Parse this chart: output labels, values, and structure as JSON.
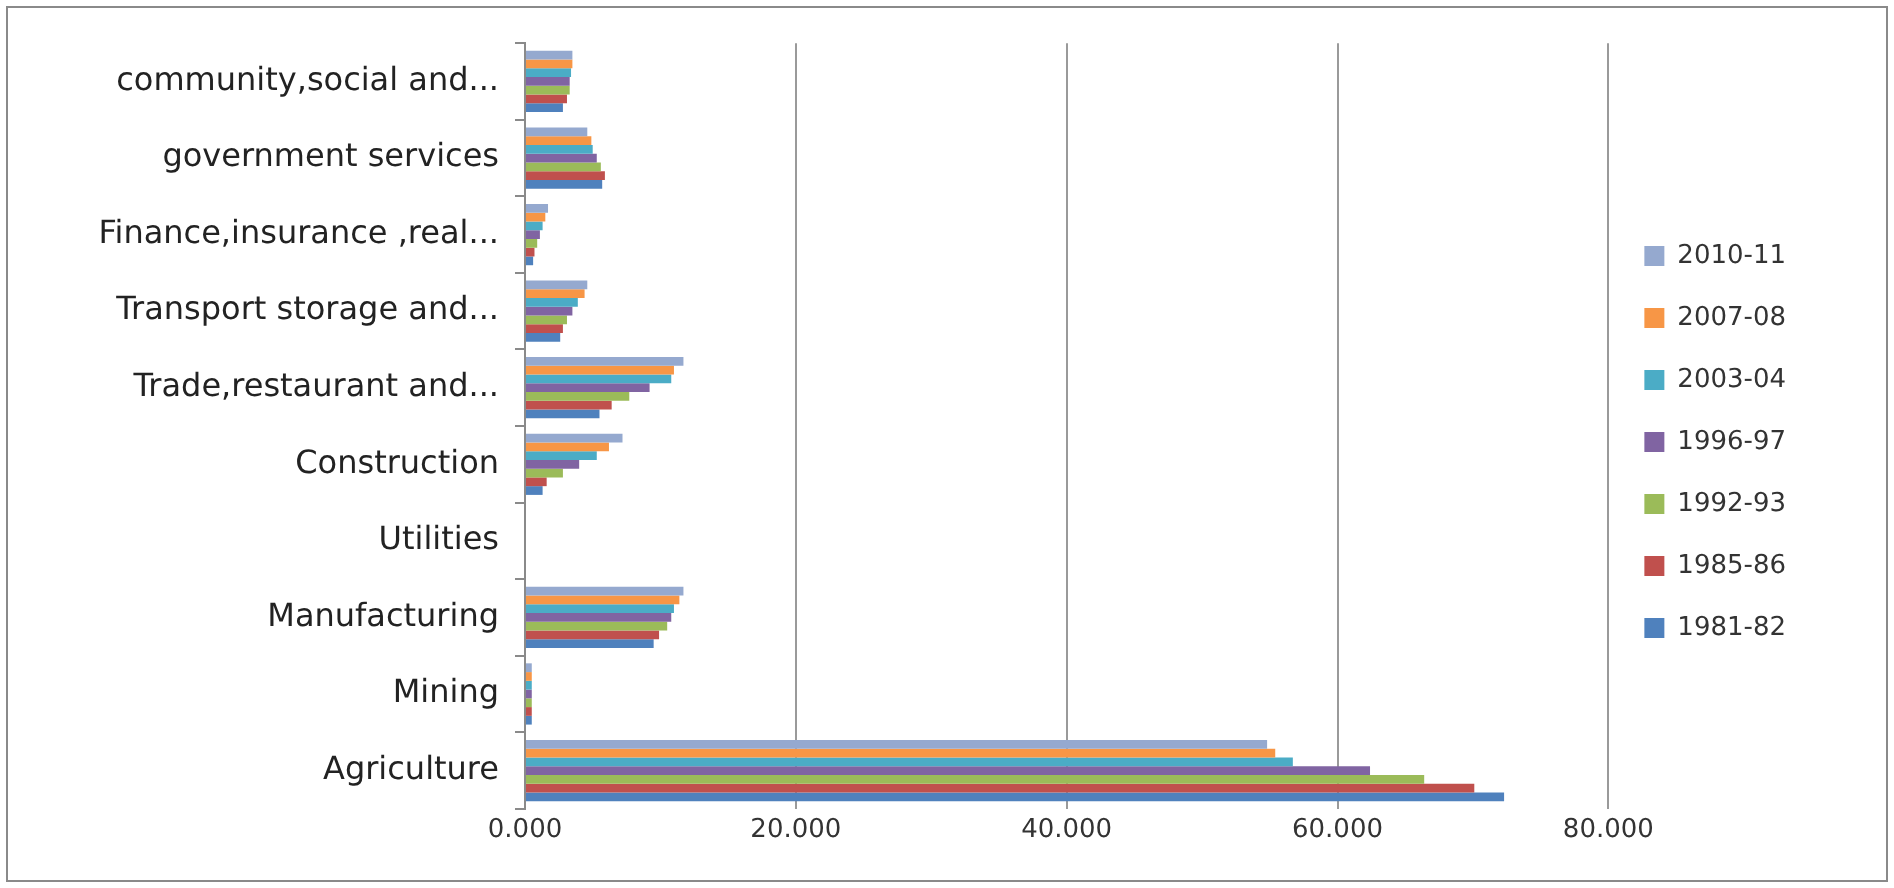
{
  "chart_data": {
    "type": "bar",
    "orientation": "horizontal",
    "categories": [
      "community,social and...",
      "government services",
      "Finance,insurance ,real...",
      "Transport storage and...",
      "Trade,restaurant and...",
      "Construction",
      "Utilities",
      "Manufacturing",
      "Mining",
      "Agriculture"
    ],
    "series": [
      {
        "name": "2010-11",
        "color": "#95a9cf",
        "values": [
          3.5,
          4.6,
          1.7,
          4.6,
          11.7,
          7.2,
          null,
          11.7,
          0.5,
          54.8
        ]
      },
      {
        "name": "2007-08",
        "color": "#f79646",
        "values": [
          3.5,
          4.9,
          1.5,
          4.4,
          11.0,
          6.2,
          null,
          11.4,
          0.5,
          55.4
        ]
      },
      {
        "name": "2003-04",
        "color": "#4bacc6",
        "values": [
          3.4,
          5.0,
          1.3,
          3.9,
          10.8,
          5.3,
          null,
          11.0,
          0.5,
          56.7
        ]
      },
      {
        "name": "1996-97",
        "color": "#8064a2",
        "values": [
          3.3,
          5.3,
          1.1,
          3.5,
          9.2,
          4.0,
          null,
          10.8,
          0.5,
          62.4
        ]
      },
      {
        "name": "1992-93",
        "color": "#9bbb59",
        "values": [
          3.3,
          5.6,
          0.9,
          3.1,
          7.7,
          2.8,
          null,
          10.5,
          0.5,
          66.4
        ]
      },
      {
        "name": "1985-86",
        "color": "#c0504d",
        "values": [
          3.1,
          5.9,
          0.7,
          2.8,
          6.4,
          1.6,
          null,
          9.9,
          0.5,
          70.1
        ]
      },
      {
        "name": "1981-82",
        "color": "#4f81bd",
        "values": [
          2.8,
          5.7,
          0.6,
          2.6,
          5.5,
          1.3,
          null,
          9.5,
          0.5,
          72.3
        ]
      }
    ],
    "xlim": [
      0,
      80
    ],
    "xticks": [
      {
        "value": 0,
        "label": "0.000"
      },
      {
        "value": 20,
        "label": "20.000"
      },
      {
        "value": 40,
        "label": "40.000"
      },
      {
        "value": 60,
        "label": "60.000"
      },
      {
        "value": 80,
        "label": "80.000"
      }
    ],
    "grid": "x",
    "legend": "right"
  }
}
